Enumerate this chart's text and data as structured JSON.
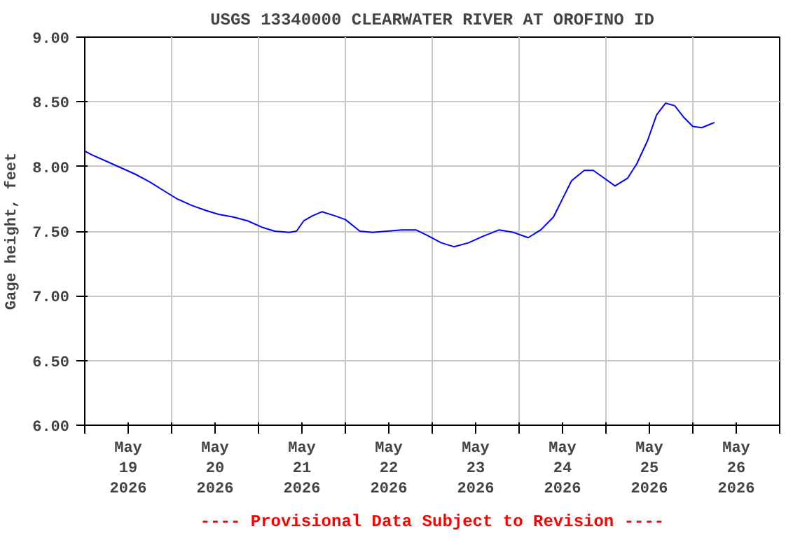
{
  "chart_data": {
    "type": "line",
    "title": "USGS 13340000 CLEARWATER RIVER AT OROFINO ID",
    "ylabel": "Gage height, feet",
    "annotations": [
      "---- Provisional Data Subject to Revision ----"
    ],
    "x": [
      "2026-05-19T00:00",
      "2026-05-19T02:00",
      "2026-05-19T06:00",
      "2026-05-19T10:00",
      "2026-05-19T14:00",
      "2026-05-19T18:00",
      "2026-05-19T22:00",
      "2026-05-20T01:30",
      "2026-05-20T05:30",
      "2026-05-20T09:30",
      "2026-05-20T13:00",
      "2026-05-20T17:00",
      "2026-05-20T21:00",
      "2026-05-21T01:00",
      "2026-05-21T04:30",
      "2026-05-21T08:30",
      "2026-05-21T10:30",
      "2026-05-21T12:30",
      "2026-05-21T15:00",
      "2026-05-21T17:30",
      "2026-05-21T21:00",
      "2026-05-22T00:00",
      "2026-05-22T04:00",
      "2026-05-22T07:30",
      "2026-05-22T11:30",
      "2026-05-22T15:30",
      "2026-05-22T19:30",
      "2026-05-22T22:30",
      "2026-05-23T02:30",
      "2026-05-23T06:00",
      "2026-05-23T10:00",
      "2026-05-23T14:00",
      "2026-05-23T18:30",
      "2026-05-23T22:30",
      "2026-05-24T02:30",
      "2026-05-24T06:00",
      "2026-05-24T09:30",
      "2026-05-24T12:00",
      "2026-05-24T14:30",
      "2026-05-24T18:00",
      "2026-05-24T20:30",
      "2026-05-24T23:30",
      "2026-05-25T02:30",
      "2026-05-25T06:00",
      "2026-05-25T08:30",
      "2026-05-25T11:30",
      "2026-05-25T14:00",
      "2026-05-25T16:30",
      "2026-05-25T19:00",
      "2026-05-25T21:30",
      "2026-05-26T00:00",
      "2026-05-26T02:30",
      "2026-05-26T06:00"
    ],
    "series": [
      {
        "color": "#0000ff",
        "values": [
          8.12,
          8.09,
          8.04,
          7.99,
          7.94,
          7.88,
          7.81,
          7.75,
          7.7,
          7.66,
          7.63,
          7.61,
          7.58,
          7.53,
          7.5,
          7.49,
          7.5,
          7.58,
          7.62,
          7.65,
          7.62,
          7.59,
          7.5,
          7.49,
          7.5,
          7.51,
          7.51,
          7.47,
          7.41,
          7.38,
          7.41,
          7.46,
          7.51,
          7.49,
          7.45,
          7.51,
          7.61,
          7.75,
          7.89,
          7.97,
          7.97,
          7.91,
          7.85,
          7.91,
          8.02,
          8.2,
          8.4,
          8.49,
          8.47,
          8.38,
          8.31,
          8.3,
          8.34
        ]
      }
    ],
    "xlim": [
      "2026-05-19T00:00",
      "2026-05-27T00:00"
    ],
    "xticks": [
      {
        "value": "2026-05-19T00:00",
        "label": null
      },
      {
        "value": "2026-05-19T12:00",
        "label": "May\n19\n2026"
      },
      {
        "value": "2026-05-20T00:00",
        "label": null
      },
      {
        "value": "2026-05-20T12:00",
        "label": "May\n20\n2026"
      },
      {
        "value": "2026-05-21T00:00",
        "label": null
      },
      {
        "value": "2026-05-21T12:00",
        "label": "May\n21\n2026"
      },
      {
        "value": "2026-05-22T00:00",
        "label": null
      },
      {
        "value": "2026-05-22T12:00",
        "label": "May\n22\n2026"
      },
      {
        "value": "2026-05-23T00:00",
        "label": null
      },
      {
        "value": "2026-05-23T12:00",
        "label": "May\n23\n2026"
      },
      {
        "value": "2026-05-24T00:00",
        "label": null
      },
      {
        "value": "2026-05-24T12:00",
        "label": "May\n24\n2026"
      },
      {
        "value": "2026-05-25T00:00",
        "label": null
      },
      {
        "value": "2026-05-25T12:00",
        "label": "May\n25\n2026"
      },
      {
        "value": "2026-05-26T00:00",
        "label": null
      },
      {
        "value": "2026-05-26T12:00",
        "label": "May\n26\n2026"
      },
      {
        "value": "2026-05-27T00:00",
        "label": null
      }
    ],
    "ylim": [
      6.0,
      9.0
    ],
    "yticks": [
      {
        "value": 6.0,
        "label": "6.00"
      },
      {
        "value": 6.5,
        "label": "6.50"
      },
      {
        "value": 7.0,
        "label": "7.00"
      },
      {
        "value": 7.5,
        "label": "7.50"
      },
      {
        "value": 8.0,
        "label": "8.00"
      },
      {
        "value": 8.5,
        "label": "8.50"
      },
      {
        "value": 9.0,
        "label": "9.00"
      }
    ],
    "grid": true,
    "line_style": "solid"
  }
}
